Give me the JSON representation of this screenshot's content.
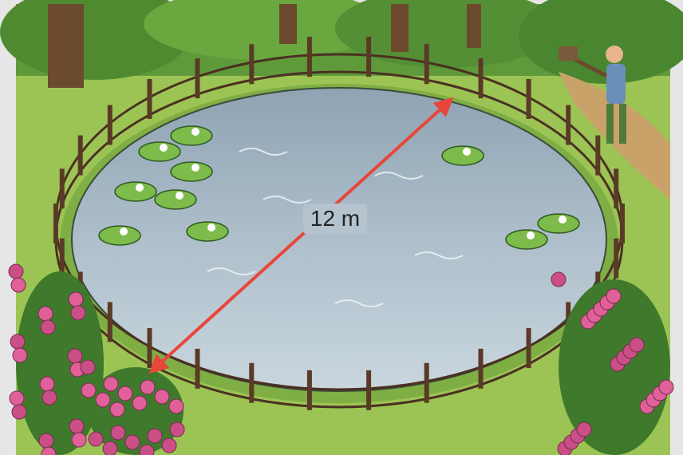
{
  "label": "12 m"
}
